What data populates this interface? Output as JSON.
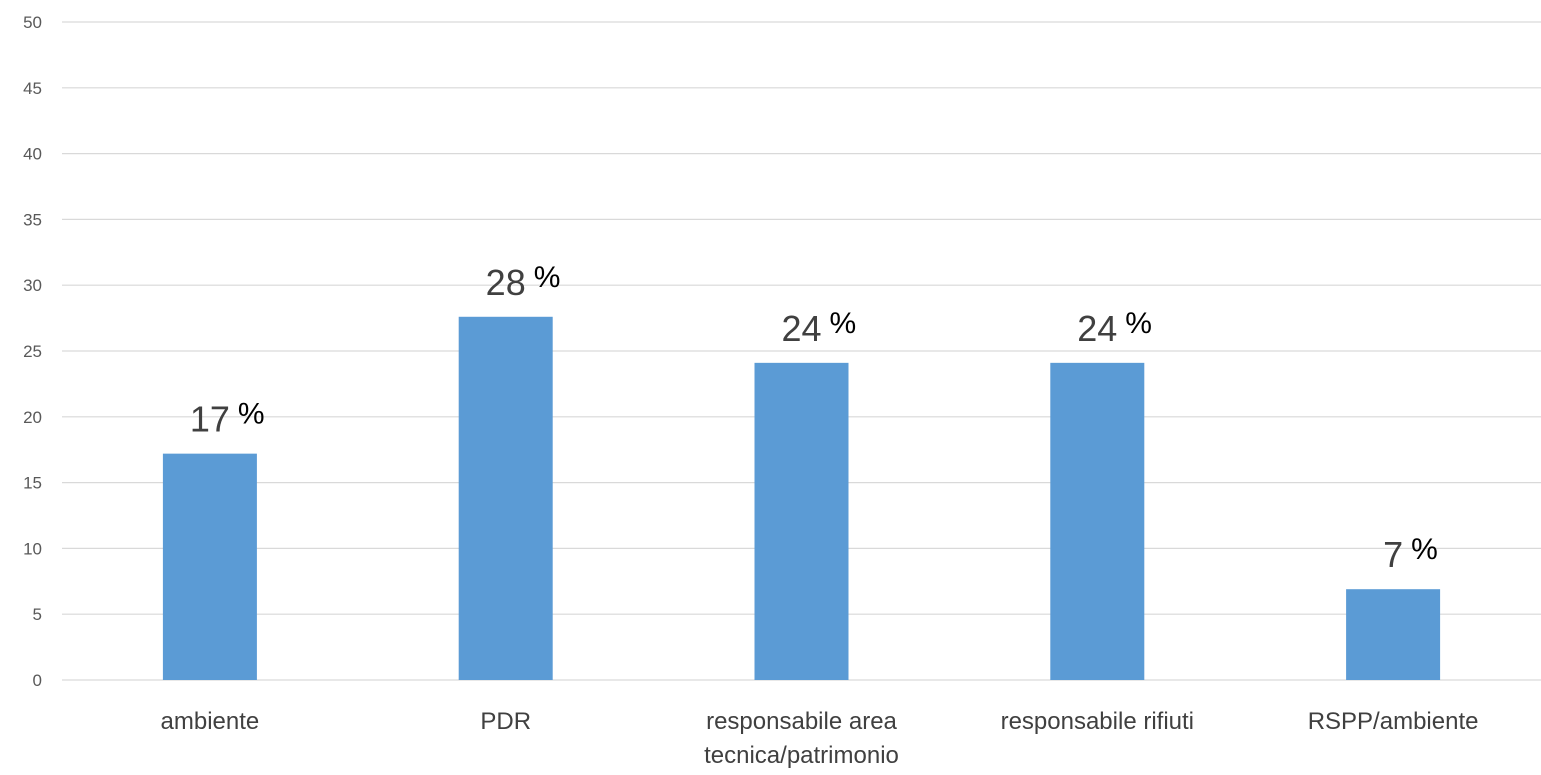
{
  "chart_data": {
    "type": "bar",
    "categories": [
      "ambiente",
      "PDR",
      "responsabile area tecnica/patrimonio",
      "responsabile rifiuti",
      "RSPP/ambiente"
    ],
    "category_label_lines": [
      [
        "ambiente"
      ],
      [
        "PDR"
      ],
      [
        "responsabile area",
        "tecnica/patrimonio"
      ],
      [
        "responsabile rifiuti"
      ],
      [
        "RSPP/ambiente"
      ]
    ],
    "values": [
      17.2,
      27.6,
      24.1,
      24.1,
      6.9
    ],
    "data_labels": [
      {
        "number": "17",
        "unit": "%"
      },
      {
        "number": "28",
        "unit": "%"
      },
      {
        "number": "24",
        "unit": "%"
      },
      {
        "number": "24",
        "unit": "%"
      },
      {
        "number": "7",
        "unit": "%"
      }
    ],
    "yticks": [
      "0",
      "5",
      "10",
      "15",
      "20",
      "25",
      "30",
      "35",
      "40",
      "45",
      "50"
    ],
    "ylim": [
      0,
      50
    ],
    "grid": true,
    "legend": "none",
    "bar_color": "#5B9BD5",
    "grid_color": "#D9D9D9"
  }
}
